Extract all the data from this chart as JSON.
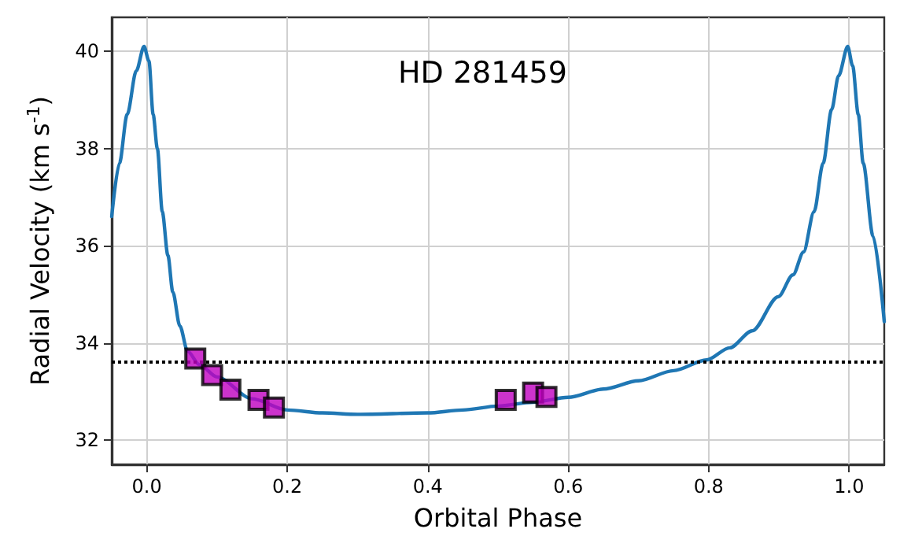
{
  "chart_data": {
    "type": "line",
    "title": "HD 281459",
    "xlabel": "Orbital Phase",
    "ylabel": "Radial Velocity (km s$^{-1}$)",
    "xlim": [
      -0.05,
      1.05
    ],
    "xticks": [
      {
        "value": 0,
        "label": "0.0"
      },
      0.2,
      0.4,
      0.6,
      0.8,
      {
        "value": 1,
        "label": "1.0"
      }
    ],
    "ylim": [
      31.5,
      40.7
    ],
    "yticks": [
      32,
      34,
      36,
      38,
      40
    ],
    "grid": true,
    "ref_lines": [
      {
        "axis": "y",
        "value": 33.6,
        "color": "#000000",
        "line_style": "dotted"
      }
    ],
    "series": [
      {
        "color": "#1f77b4",
        "marker": "none",
        "x": [
          -0.05,
          -0.039,
          -0.028,
          -0.015,
          -0.004,
          0.003,
          0.009,
          0.015,
          0.022,
          0.03,
          0.037,
          0.047,
          0.058,
          0.075,
          0.1,
          0.15,
          0.2,
          0.25,
          0.3,
          0.4,
          0.45,
          0.5,
          0.55,
          0.6,
          0.65,
          0.7,
          0.75,
          0.797,
          0.83,
          0.862,
          0.899,
          0.92,
          0.935,
          0.95,
          0.963,
          0.975,
          0.985,
          0.998,
          1.005,
          1.013,
          1.02,
          1.034,
          1.05
        ],
        "values": [
          36.6,
          37.7,
          38.7,
          39.6,
          40.1,
          39.8,
          38.7,
          38.0,
          36.7,
          35.8,
          35.05,
          34.35,
          33.83,
          33.55,
          33.3,
          32.85,
          32.62,
          32.56,
          32.53,
          32.56,
          32.62,
          32.7,
          32.78,
          32.88,
          33.05,
          33.22,
          33.43,
          33.65,
          33.9,
          34.25,
          34.95,
          35.4,
          35.87,
          36.7,
          37.7,
          38.8,
          39.5,
          40.1,
          39.7,
          38.7,
          37.7,
          36.2,
          34.44
        ]
      },
      {
        "type": "scatter",
        "color": "#c000c0",
        "marker": "square",
        "x": [
          0.069,
          0.093,
          0.119,
          0.159,
          0.181,
          0.511,
          0.55,
          0.569
        ],
        "values": [
          33.68,
          33.34,
          33.04,
          32.83,
          32.67,
          32.83,
          32.98,
          32.89
        ]
      }
    ]
  }
}
